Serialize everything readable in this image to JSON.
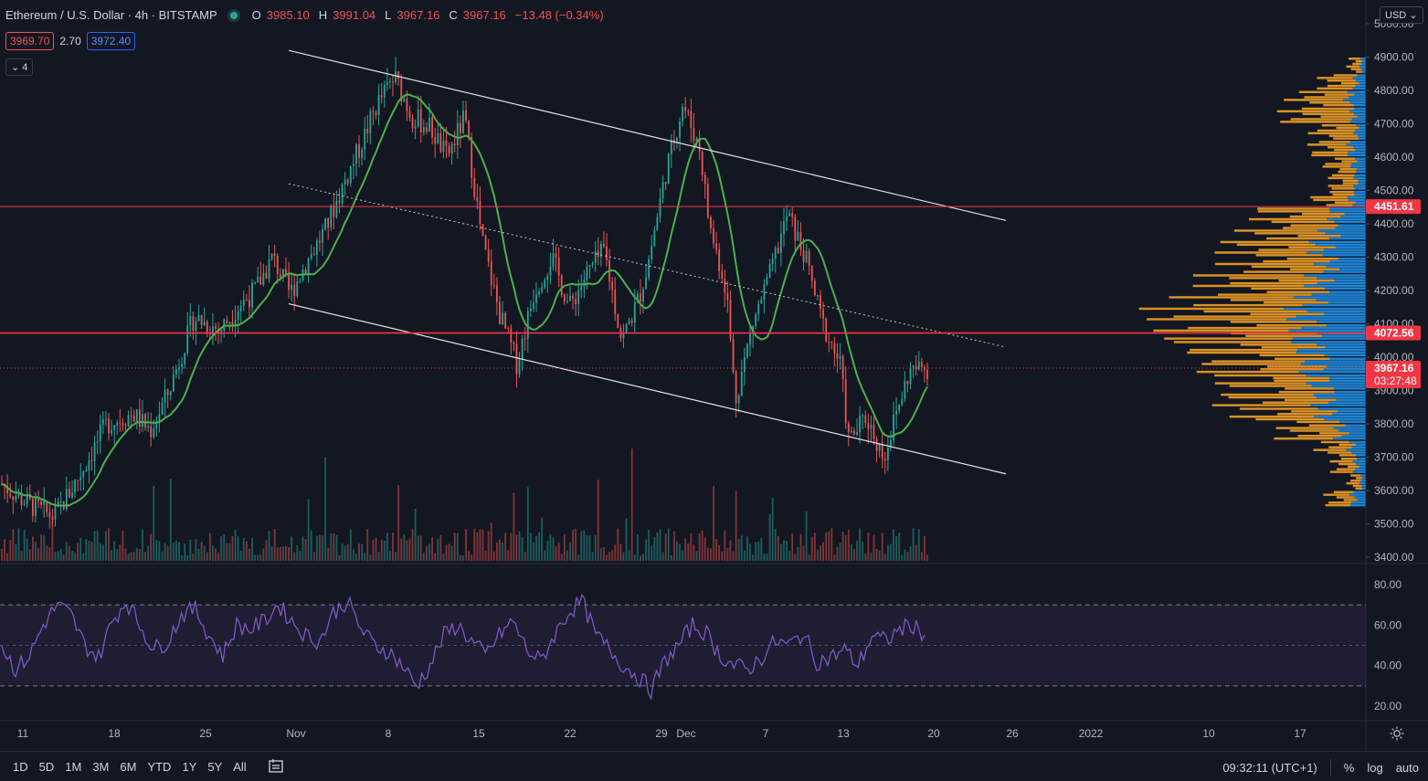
{
  "header": {
    "symbol": "Ethereum / U.S. Dollar · 4h · BITSTAMP",
    "open_label": "O",
    "open": "3985.10",
    "high_label": "H",
    "high": "3991.04",
    "low_label": "L",
    "low": "3967.16",
    "close_label": "C",
    "close": "3967.16",
    "change": "−13.48 (−0.34%)"
  },
  "quote": {
    "sell": "3969.70",
    "spread": "2.70",
    "buy": "3972.40"
  },
  "indicators_count": "4",
  "currency": "USD",
  "colors": {
    "bg": "#131722",
    "up": "#26a69a",
    "down": "#ef5350",
    "ma": "#4caf50",
    "rsi": "#7e57c2",
    "hline": "#f23645",
    "vp_up": "#2196f3",
    "vp_down": "#ffa726"
  },
  "chart_data": {
    "type": "candlestick",
    "symbol": "ETHUSD",
    "interval": "4h",
    "ylim": [
      3400,
      5000
    ],
    "y_ticks": [
      "5000.00",
      "4900.00",
      "4800.00",
      "4700.00",
      "4600.00",
      "4500.00",
      "4400.00",
      "4300.00",
      "4200.00",
      "4100.00",
      "4000.00",
      "3900.00",
      "3800.00",
      "3700.00",
      "3600.00",
      "3500.00",
      "3400.00"
    ],
    "x_ticks": [
      "11",
      "18",
      "25",
      "Nov",
      "8",
      "15",
      "22",
      "29",
      "Dec",
      "7",
      "13",
      "20",
      "26",
      "2022",
      "10",
      "17"
    ],
    "price_labels": [
      {
        "value": 4451.61,
        "text": "4451.61",
        "role": "horizontal-line"
      },
      {
        "value": 4072.56,
        "text": "4072.56",
        "role": "horizontal-line"
      },
      {
        "value": 3967.16,
        "text": "3967.16",
        "role": "last-price"
      }
    ],
    "countdown": "03:27:48",
    "price_path": [
      [
        0,
        3620
      ],
      [
        3,
        3560
      ],
      [
        6,
        3520
      ],
      [
        9,
        3650
      ],
      [
        12,
        3800
      ],
      [
        15,
        3830
      ],
      [
        17,
        3780
      ],
      [
        19,
        3890
      ],
      [
        22,
        4120
      ],
      [
        25,
        4080
      ],
      [
        27,
        4150
      ],
      [
        29,
        4200
      ],
      [
        31,
        4300
      ],
      [
        33,
        4190
      ],
      [
        35,
        4290
      ],
      [
        37,
        4380
      ],
      [
        39,
        4510
      ],
      [
        41,
        4630
      ],
      [
        43,
        4760
      ],
      [
        45,
        4840
      ],
      [
        47,
        4720
      ],
      [
        49,
        4690
      ],
      [
        51,
        4600
      ],
      [
        53,
        4720
      ],
      [
        55,
        4350
      ],
      [
        57,
        4130
      ],
      [
        59,
        3980
      ],
      [
        61,
        4200
      ],
      [
        63,
        4300
      ],
      [
        65,
        4150
      ],
      [
        67,
        4250
      ],
      [
        69,
        4320
      ],
      [
        71,
        4050
      ],
      [
        73,
        4180
      ],
      [
        74,
        4280
      ],
      [
        76,
        4550
      ],
      [
        78,
        4760
      ],
      [
        80,
        4620
      ],
      [
        81,
        4400
      ],
      [
        83,
        4200
      ],
      [
        84,
        3870
      ],
      [
        86,
        4100
      ],
      [
        88,
        4250
      ],
      [
        90,
        4430
      ],
      [
        92,
        4300
      ],
      [
        94,
        4100
      ],
      [
        96,
        3980
      ],
      [
        97,
        3750
      ],
      [
        99,
        3820
      ],
      [
        101,
        3700
      ],
      [
        103,
        3880
      ],
      [
        104,
        3960
      ],
      [
        106,
        3967
      ]
    ],
    "rsi": {
      "ylim": [
        15,
        90
      ],
      "ticks": [
        "80.00",
        "60.00",
        "40.00",
        "20.00"
      ],
      "upper": 70,
      "middle": 50,
      "lower": 30,
      "values": [
        50,
        38,
        45,
        60,
        70,
        65,
        50,
        44,
        62,
        72,
        60,
        48,
        52,
        65,
        68,
        55,
        45,
        60,
        58,
        62,
        70,
        62,
        55,
        52,
        66,
        72,
        58,
        50,
        47,
        40,
        30,
        40,
        55,
        60,
        52,
        45,
        55,
        62,
        48,
        42,
        55,
        66,
        72,
        55,
        48,
        40,
        35,
        28,
        42,
        50,
        60,
        56,
        45,
        40,
        38,
        44,
        52,
        50,
        56,
        42,
        44,
        48,
        40,
        55,
        52,
        58,
        60,
        54
      ]
    },
    "volume_profile": {
      "levels": [
        3550,
        3600,
        3650,
        3700,
        3750,
        3800,
        3850,
        3900,
        3950,
        4000,
        4050,
        4100,
        4150,
        4200,
        4250,
        4300,
        4350,
        4400,
        4450,
        4500,
        4550,
        4600,
        4650,
        4700,
        4750,
        4800,
        4850
      ],
      "up": [
        25,
        10,
        20,
        30,
        50,
        80,
        85,
        95,
        105,
        115,
        120,
        125,
        110,
        95,
        80,
        90,
        75,
        60,
        30,
        20,
        25,
        30,
        20,
        25,
        35,
        20,
        10
      ],
      "down": [
        40,
        20,
        35,
        50,
        90,
        130,
        150,
        145,
        160,
        180,
        210,
        220,
        190,
        170,
        150,
        140,
        130,
        120,
        60,
        40,
        45,
        60,
        70,
        110,
        90,
        55,
        20
      ]
    }
  },
  "bottom_bar": {
    "timeframes": [
      "1D",
      "5D",
      "1M",
      "3M",
      "6M",
      "YTD",
      "1Y",
      "5Y",
      "All"
    ],
    "clock": "09:32:11 (UTC+1)",
    "percent": "%",
    "log": "log",
    "auto": "auto"
  }
}
